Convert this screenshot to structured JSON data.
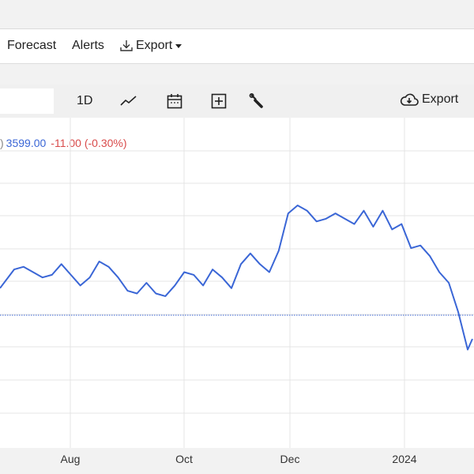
{
  "nav": {
    "forecast_label": "Forecast",
    "alerts_label": "Alerts",
    "export_label": "Export"
  },
  "toolbar": {
    "range_label": "1D",
    "export_label": "Export",
    "icons": [
      "line-chart-icon",
      "calendar-icon",
      "add-box-icon",
      "wrench-icon",
      "cloud-download-icon"
    ]
  },
  "quote": {
    "paren": ")",
    "price": "3599.00",
    "change": "-11.00 (-0.30%)"
  },
  "colors": {
    "line": "#3a66d6",
    "negative": "#d94b4b",
    "grid": "#e4e4e4",
    "baseline": "#3a66d6"
  },
  "chart_data": {
    "type": "line",
    "x_tick_labels": [
      "Aug",
      "Oct",
      "Dec",
      "2024"
    ],
    "baseline": "previous close (dotted)",
    "grid": true,
    "y_tick_labels_visible": false,
    "series": [
      {
        "note": "values in relative chart units (0 = bottom, 100 = top of plot); y axis labels are cropped out of view",
        "x": [
          0,
          3,
          5,
          7,
          9,
          11,
          13,
          15,
          17,
          19,
          21,
          23,
          25,
          27,
          29,
          31,
          33,
          35,
          37,
          39,
          41,
          43,
          45,
          47,
          49,
          51,
          53,
          55,
          57,
          59,
          61,
          63,
          65,
          67,
          69,
          71,
          73,
          75,
          77,
          79,
          81,
          83,
          85,
          87,
          89,
          91,
          93,
          95,
          97,
          99,
          100
        ],
        "values": [
          48,
          55,
          56,
          54,
          52,
          53,
          57,
          53,
          49,
          52,
          58,
          56,
          52,
          47,
          46,
          50,
          46,
          45,
          49,
          54,
          53,
          49,
          55,
          52,
          48,
          57,
          61,
          57,
          54,
          62,
          76,
          79,
          77,
          73,
          74,
          76,
          74,
          72,
          77,
          71,
          77,
          70,
          72,
          63,
          64,
          60,
          54,
          50,
          39,
          25,
          29
        ]
      }
    ]
  }
}
